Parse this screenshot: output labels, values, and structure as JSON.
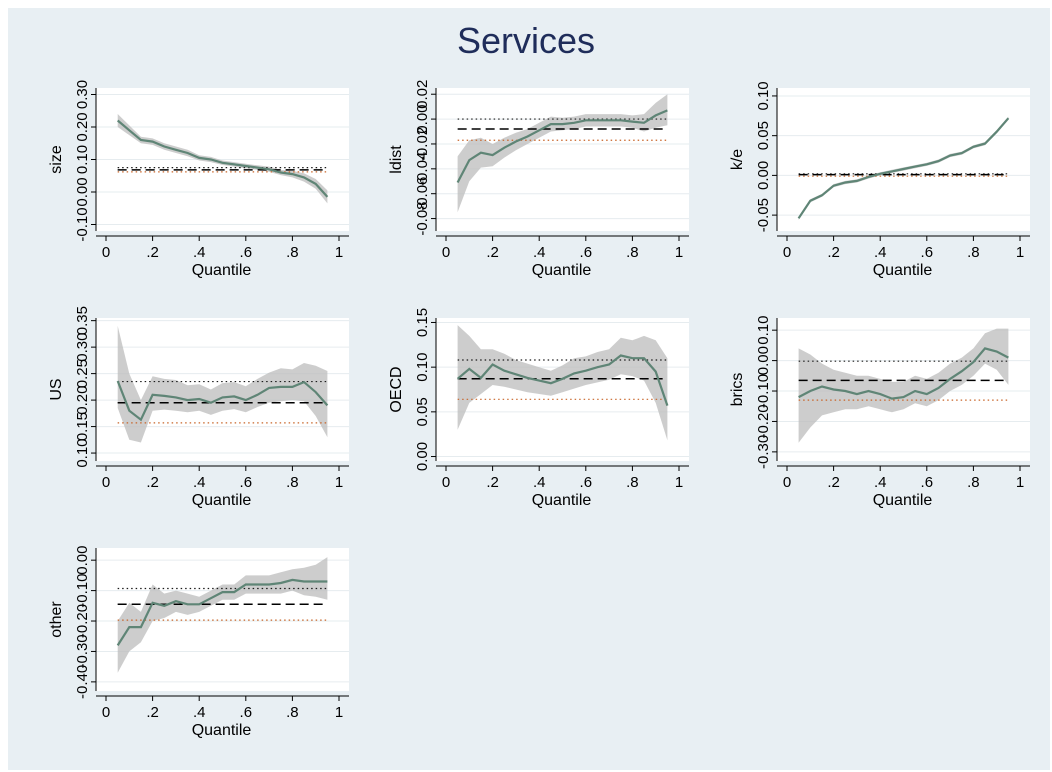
{
  "figure": {
    "title": "Services"
  },
  "colors": {
    "line": "#5f8576",
    "band": "#bcbcbc",
    "dash": "#000000",
    "dot_upper": "#1a1a1a",
    "dot_lower": "#c86428",
    "panel": "#ffffff",
    "background": "#e8eff3"
  },
  "chart_data": [
    {
      "type": "line",
      "ylabel": "size",
      "xlabel": "Quantile",
      "xlim": [
        0,
        1
      ],
      "ylim": [
        -0.12,
        0.32
      ],
      "xticks": [
        "0",
        ".2",
        ".4",
        ".6",
        ".8",
        "1"
      ],
      "xtick_values": [
        0,
        0.2,
        0.4,
        0.6,
        0.8,
        1
      ],
      "yticks": [
        "-0.10",
        "0.00",
        "0.10",
        "0.20",
        "0.30"
      ],
      "ytick_values": [
        -0.1,
        0,
        0.1,
        0.2,
        0.3
      ],
      "x": [
        0.05,
        0.1,
        0.15,
        0.2,
        0.25,
        0.3,
        0.35,
        0.4,
        0.45,
        0.5,
        0.55,
        0.6,
        0.65,
        0.7,
        0.75,
        0.8,
        0.85,
        0.9,
        0.95
      ],
      "y": [
        0.22,
        0.19,
        0.16,
        0.155,
        0.14,
        0.13,
        0.12,
        0.105,
        0.1,
        0.09,
        0.085,
        0.08,
        0.075,
        0.07,
        0.06,
        0.055,
        0.045,
        0.025,
        -0.015
      ],
      "lower": [
        0.2,
        0.175,
        0.15,
        0.145,
        0.13,
        0.12,
        0.11,
        0.097,
        0.092,
        0.083,
        0.078,
        0.073,
        0.068,
        0.062,
        0.052,
        0.045,
        0.032,
        0.01,
        -0.035
      ],
      "upper": [
        0.24,
        0.205,
        0.17,
        0.165,
        0.15,
        0.14,
        0.13,
        0.113,
        0.108,
        0.097,
        0.092,
        0.087,
        0.082,
        0.078,
        0.068,
        0.065,
        0.058,
        0.04,
        0.005
      ],
      "ols": 0.068,
      "ci_upper": 0.075,
      "ci_lower": 0.062
    },
    {
      "type": "line",
      "ylabel": "ldist",
      "xlabel": "Quantile",
      "xlim": [
        0,
        1
      ],
      "ylim": [
        -0.09,
        0.025
      ],
      "xticks": [
        "0",
        ".2",
        ".4",
        ".6",
        ".8",
        "1"
      ],
      "xtick_values": [
        0,
        0.2,
        0.4,
        0.6,
        0.8,
        1
      ],
      "yticks": [
        "-0.08",
        "-0.06",
        "-0.04",
        "-0.02",
        "0.00",
        "0.02"
      ],
      "ytick_values": [
        -0.08,
        -0.06,
        -0.04,
        -0.02,
        0,
        0.02
      ],
      "x": [
        0.05,
        0.1,
        0.15,
        0.2,
        0.25,
        0.3,
        0.35,
        0.4,
        0.45,
        0.5,
        0.55,
        0.6,
        0.65,
        0.7,
        0.75,
        0.8,
        0.85,
        0.9,
        0.95
      ],
      "y": [
        -0.051,
        -0.033,
        -0.027,
        -0.029,
        -0.023,
        -0.018,
        -0.014,
        -0.009,
        -0.004,
        -0.004,
        -0.003,
        -0.001,
        -0.001,
        -0.001,
        -0.001,
        -0.002,
        -0.003,
        0.003,
        0.007
      ],
      "lower": [
        -0.075,
        -0.05,
        -0.039,
        -0.038,
        -0.031,
        -0.025,
        -0.02,
        -0.015,
        -0.01,
        -0.009,
        -0.008,
        -0.006,
        -0.006,
        -0.006,
        -0.006,
        -0.007,
        -0.01,
        -0.007,
        -0.005
      ],
      "upper": [
        -0.03,
        -0.017,
        -0.015,
        -0.02,
        -0.015,
        -0.011,
        -0.008,
        -0.003,
        0.002,
        0.001,
        0.002,
        0.004,
        0.004,
        0.004,
        0.004,
        0.003,
        0.004,
        0.013,
        0.02
      ],
      "ols": -0.008,
      "ci_upper": 0.0,
      "ci_lower": -0.017
    },
    {
      "type": "line",
      "ylabel": "k/e",
      "xlabel": "Quantile",
      "xlim": [
        0,
        1
      ],
      "ylim": [
        -0.07,
        0.11
      ],
      "xticks": [
        "0",
        ".2",
        ".4",
        ".6",
        ".8",
        "1"
      ],
      "xtick_values": [
        0,
        0.2,
        0.4,
        0.6,
        0.8,
        1
      ],
      "yticks": [
        "-0.05",
        "0.00",
        "0.05",
        "0.10"
      ],
      "ytick_values": [
        -0.05,
        0,
        0.05,
        0.1
      ],
      "x": [
        0.05,
        0.1,
        0.15,
        0.2,
        0.25,
        0.3,
        0.35,
        0.4,
        0.45,
        0.5,
        0.55,
        0.6,
        0.65,
        0.7,
        0.75,
        0.8,
        0.85,
        0.9,
        0.95
      ],
      "y": [
        -0.054,
        -0.032,
        -0.025,
        -0.013,
        -0.009,
        -0.007,
        -0.002,
        0.002,
        0.005,
        0.008,
        0.011,
        0.014,
        0.018,
        0.025,
        0.028,
        0.036,
        0.04,
        0.055,
        0.072
      ],
      "lower": [
        -0.056,
        -0.034,
        -0.027,
        -0.015,
        -0.011,
        -0.009,
        -0.004,
        0.0,
        0.003,
        0.006,
        0.009,
        0.012,
        0.016,
        0.023,
        0.026,
        0.034,
        0.038,
        0.053,
        0.07
      ],
      "upper": [
        -0.052,
        -0.03,
        -0.023,
        -0.011,
        -0.007,
        -0.005,
        0.0,
        0.004,
        0.007,
        0.01,
        0.013,
        0.016,
        0.02,
        0.027,
        0.03,
        0.038,
        0.042,
        0.057,
        0.074
      ],
      "ols": 0.001,
      "ci_upper": 0.002,
      "ci_lower": -0.001
    },
    {
      "type": "line",
      "ylabel": "US",
      "xlabel": "Quantile",
      "xlim": [
        0,
        1
      ],
      "ylim": [
        0.085,
        0.355
      ],
      "xticks": [
        "0",
        ".2",
        ".4",
        ".6",
        ".8",
        "1"
      ],
      "xtick_values": [
        0,
        0.2,
        0.4,
        0.6,
        0.8,
        1
      ],
      "yticks": [
        "0.10",
        "0.15",
        "0.20",
        "0.25",
        "0.30",
        "0.35"
      ],
      "ytick_values": [
        0.1,
        0.15,
        0.2,
        0.25,
        0.3,
        0.35
      ],
      "x": [
        0.05,
        0.1,
        0.15,
        0.2,
        0.25,
        0.3,
        0.35,
        0.4,
        0.45,
        0.5,
        0.55,
        0.6,
        0.65,
        0.7,
        0.75,
        0.8,
        0.85,
        0.9,
        0.95
      ],
      "y": [
        0.236,
        0.18,
        0.163,
        0.21,
        0.208,
        0.205,
        0.2,
        0.202,
        0.195,
        0.205,
        0.207,
        0.2,
        0.21,
        0.223,
        0.225,
        0.225,
        0.234,
        0.215,
        0.19
      ],
      "lower": [
        0.185,
        0.125,
        0.12,
        0.18,
        0.182,
        0.18,
        0.177,
        0.18,
        0.172,
        0.18,
        0.183,
        0.177,
        0.187,
        0.195,
        0.198,
        0.2,
        0.198,
        0.17,
        0.13
      ],
      "upper": [
        0.34,
        0.25,
        0.2,
        0.245,
        0.24,
        0.238,
        0.228,
        0.23,
        0.22,
        0.232,
        0.234,
        0.226,
        0.24,
        0.252,
        0.26,
        0.258,
        0.27,
        0.265,
        0.255
      ],
      "ols": 0.195,
      "ci_upper": 0.235,
      "ci_lower": 0.157
    },
    {
      "type": "line",
      "ylabel": "OECD",
      "xlabel": "Quantile",
      "xlim": [
        0,
        1
      ],
      "ylim": [
        -0.005,
        0.155
      ],
      "xticks": [
        "0",
        ".2",
        ".4",
        ".6",
        ".8",
        "1"
      ],
      "xtick_values": [
        0,
        0.2,
        0.4,
        0.6,
        0.8,
        1
      ],
      "yticks": [
        "0.00",
        "0.05",
        "0.10",
        "0.15"
      ],
      "ytick_values": [
        0,
        0.05,
        0.1,
        0.15
      ],
      "x": [
        0.05,
        0.1,
        0.15,
        0.2,
        0.25,
        0.3,
        0.35,
        0.4,
        0.45,
        0.5,
        0.55,
        0.6,
        0.65,
        0.7,
        0.75,
        0.8,
        0.85,
        0.9,
        0.95
      ],
      "y": [
        0.087,
        0.098,
        0.088,
        0.103,
        0.096,
        0.092,
        0.088,
        0.085,
        0.082,
        0.087,
        0.093,
        0.096,
        0.1,
        0.103,
        0.113,
        0.11,
        0.11,
        0.095,
        0.057
      ],
      "lower": [
        0.03,
        0.06,
        0.07,
        0.08,
        0.078,
        0.075,
        0.072,
        0.07,
        0.068,
        0.072,
        0.076,
        0.08,
        0.083,
        0.086,
        0.092,
        0.09,
        0.085,
        0.06,
        0.018
      ],
      "upper": [
        0.147,
        0.135,
        0.12,
        0.12,
        0.115,
        0.108,
        0.104,
        0.1,
        0.096,
        0.102,
        0.11,
        0.112,
        0.117,
        0.12,
        0.133,
        0.13,
        0.135,
        0.13,
        0.11
      ],
      "ols": 0.087,
      "ci_upper": 0.108,
      "ci_lower": 0.064
    },
    {
      "type": "line",
      "ylabel": "brics",
      "xlabel": "Quantile",
      "xlim": [
        0,
        1
      ],
      "ylim": [
        -0.33,
        0.14
      ],
      "xticks": [
        "0",
        ".2",
        ".4",
        ".6",
        ".8",
        "1"
      ],
      "xtick_values": [
        0,
        0.2,
        0.4,
        0.6,
        0.8,
        1
      ],
      "yticks": [
        "-0.30",
        "-0.20",
        "-0.10",
        "0.00",
        "0.10"
      ],
      "ytick_values": [
        -0.3,
        -0.2,
        -0.1,
        0,
        0.1
      ],
      "x": [
        0.05,
        0.1,
        0.15,
        0.2,
        0.25,
        0.3,
        0.35,
        0.4,
        0.45,
        0.5,
        0.55,
        0.6,
        0.65,
        0.7,
        0.75,
        0.8,
        0.85,
        0.9,
        0.95
      ],
      "y": [
        -0.12,
        -0.1,
        -0.085,
        -0.095,
        -0.1,
        -0.11,
        -0.1,
        -0.11,
        -0.125,
        -0.12,
        -0.1,
        -0.11,
        -0.09,
        -0.06,
        -0.035,
        -0.005,
        0.04,
        0.03,
        0.01
      ],
      "lower": [
        -0.27,
        -0.22,
        -0.18,
        -0.17,
        -0.16,
        -0.16,
        -0.15,
        -0.16,
        -0.17,
        -0.16,
        -0.14,
        -0.15,
        -0.13,
        -0.1,
        -0.08,
        -0.05,
        -0.01,
        -0.03,
        -0.08
      ],
      "upper": [
        0.04,
        0.02,
        -0.01,
        -0.03,
        -0.04,
        -0.05,
        -0.05,
        -0.06,
        -0.07,
        -0.07,
        -0.05,
        -0.06,
        -0.04,
        -0.01,
        0.01,
        0.04,
        0.09,
        0.105,
        0.105
      ],
      "ols": -0.065,
      "ci_upper": -0.002,
      "ci_lower": -0.13
    },
    {
      "type": "line",
      "ylabel": "other",
      "xlabel": "Quantile",
      "xlim": [
        0,
        1
      ],
      "ylim": [
        -0.43,
        0.04
      ],
      "xticks": [
        "0",
        ".2",
        ".4",
        ".6",
        ".8",
        "1"
      ],
      "xtick_values": [
        0,
        0.2,
        0.4,
        0.6,
        0.8,
        1
      ],
      "yticks": [
        "-0.40",
        "-0.30",
        "-0.20",
        "-0.10",
        "0.00"
      ],
      "ytick_values": [
        -0.4,
        -0.3,
        -0.2,
        -0.1,
        0
      ],
      "x": [
        0.05,
        0.1,
        0.15,
        0.2,
        0.25,
        0.3,
        0.35,
        0.4,
        0.45,
        0.5,
        0.55,
        0.6,
        0.65,
        0.7,
        0.75,
        0.8,
        0.85,
        0.9,
        0.95
      ],
      "y": [
        -0.28,
        -0.22,
        -0.22,
        -0.14,
        -0.15,
        -0.135,
        -0.145,
        -0.145,
        -0.125,
        -0.105,
        -0.105,
        -0.08,
        -0.08,
        -0.08,
        -0.075,
        -0.065,
        -0.07,
        -0.07,
        -0.07
      ],
      "lower": [
        -0.37,
        -0.3,
        -0.27,
        -0.2,
        -0.19,
        -0.17,
        -0.18,
        -0.17,
        -0.15,
        -0.13,
        -0.13,
        -0.11,
        -0.11,
        -0.11,
        -0.11,
        -0.1,
        -0.115,
        -0.12,
        -0.13
      ],
      "upper": [
        -0.2,
        -0.14,
        -0.17,
        -0.08,
        -0.11,
        -0.1,
        -0.11,
        -0.12,
        -0.1,
        -0.08,
        -0.08,
        -0.05,
        -0.05,
        -0.05,
        -0.04,
        -0.03,
        -0.025,
        -0.015,
        0.01
      ],
      "ols": -0.145,
      "ci_upper": -0.093,
      "ci_lower": -0.197
    }
  ]
}
